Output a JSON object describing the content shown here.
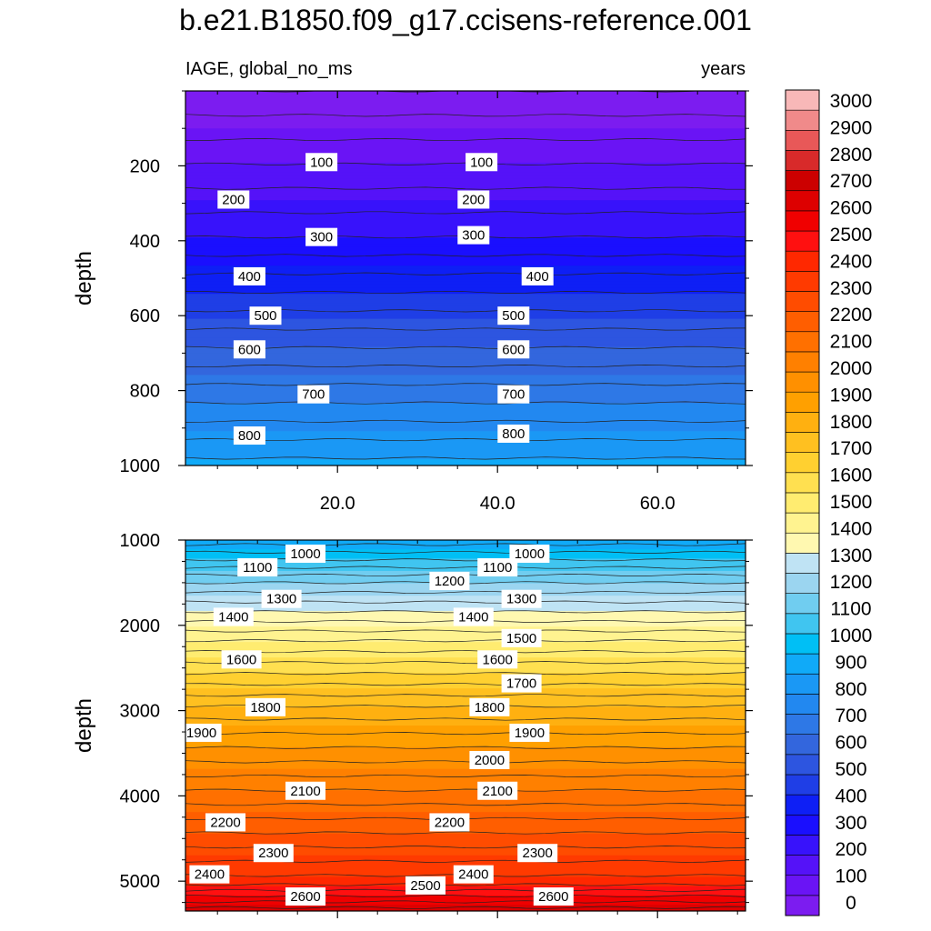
{
  "chart_data": {
    "type": "contour",
    "title": "b.e21.B1850.f09_g17.ccisens-reference.001",
    "left_string": "IAGE, global_no_ms",
    "right_string": "years",
    "colorbar": {
      "levels": [
        0,
        100,
        200,
        300,
        400,
        500,
        600,
        700,
        800,
        900,
        1000,
        1100,
        1200,
        1300,
        1400,
        1500,
        1600,
        1700,
        1800,
        1900,
        2000,
        2100,
        2200,
        2300,
        2400,
        2500,
        2600,
        2700,
        2800,
        2900,
        3000
      ],
      "tick_labels": [
        "0",
        "100",
        "200",
        "300",
        "400",
        "500",
        "600",
        "700",
        "800",
        "900",
        "1000",
        "1100",
        "1200",
        "1300",
        "1400",
        "1500",
        "1600",
        "1700",
        "1800",
        "1900",
        "2000",
        "2100",
        "2200",
        "2300",
        "2400",
        "2500",
        "2600",
        "2700",
        "2800",
        "2900",
        "3000"
      ],
      "colors": [
        "#7c1cf0",
        "#6a14f5",
        "#5512f8",
        "#3812fb",
        "#1a0ffe",
        "#0e1ff5",
        "#1f3ee6",
        "#2d55e0",
        "#3366dd",
        "#2e78e6",
        "#2288f0",
        "#1a98f5",
        "#10aaf8",
        "#00bff5",
        "#40c5f0",
        "#70cdf0",
        "#9bd5f0",
        "#bfe3f4",
        "#fff8b0",
        "#fff390",
        "#ffec70",
        "#ffe050",
        "#ffd030",
        "#ffc020",
        "#ffb010",
        "#ffa000",
        "#ff9000",
        "#ff8000",
        "#ff7000",
        "#ff5e00",
        "#ff4c00",
        "#ff3a00",
        "#ff2800",
        "#ff1010",
        "#f00000",
        "#dd0000",
        "#cc0000",
        "#d82a2a",
        "#e85858",
        "#f08a8a",
        "#f8b8b8"
      ]
    },
    "panels": [
      {
        "name": "upper",
        "ylabel": "depth",
        "ylim": [
          1000,
          0
        ],
        "yticks": [
          200,
          400,
          600,
          800,
          1000
        ],
        "ytick_labels": [
          "200",
          "400",
          "600",
          "800",
          "1000"
        ],
        "contour_labels": [
          {
            "text": "100",
            "x": 18,
            "y": 190
          },
          {
            "text": "100",
            "x": 38,
            "y": 190
          },
          {
            "text": "200",
            "x": 7,
            "y": 290
          },
          {
            "text": "200",
            "x": 37,
            "y": 290
          },
          {
            "text": "300",
            "x": 18,
            "y": 390
          },
          {
            "text": "300",
            "x": 37,
            "y": 385
          },
          {
            "text": "400",
            "x": 9,
            "y": 495
          },
          {
            "text": "400",
            "x": 45,
            "y": 495
          },
          {
            "text": "500",
            "x": 11,
            "y": 600
          },
          {
            "text": "500",
            "x": 42,
            "y": 600
          },
          {
            "text": "600",
            "x": 9,
            "y": 690
          },
          {
            "text": "600",
            "x": 42,
            "y": 690
          },
          {
            "text": "700",
            "x": 17,
            "y": 810
          },
          {
            "text": "700",
            "x": 42,
            "y": 810
          },
          {
            "text": "800",
            "x": 9,
            "y": 920
          },
          {
            "text": "800",
            "x": 42,
            "y": 915
          }
        ]
      },
      {
        "name": "lower",
        "ylabel": "depth",
        "ylim": [
          5350,
          1000
        ],
        "yticks": [
          1000,
          2000,
          3000,
          4000,
          5000
        ],
        "ytick_labels": [
          "1000",
          "2000",
          "3000",
          "4000",
          "5000"
        ],
        "contour_labels": [
          {
            "text": "1000",
            "x": 16,
            "y": 1160
          },
          {
            "text": "1000",
            "x": 44,
            "y": 1160
          },
          {
            "text": "1100",
            "x": 10,
            "y": 1320
          },
          {
            "text": "1100",
            "x": 40,
            "y": 1320
          },
          {
            "text": "1200",
            "x": 34,
            "y": 1480
          },
          {
            "text": "1300",
            "x": 13,
            "y": 1690
          },
          {
            "text": "1300",
            "x": 43,
            "y": 1690
          },
          {
            "text": "1400",
            "x": 7,
            "y": 1900
          },
          {
            "text": "1400",
            "x": 37,
            "y": 1900
          },
          {
            "text": "1500",
            "x": 43,
            "y": 2150
          },
          {
            "text": "1600",
            "x": 8,
            "y": 2400
          },
          {
            "text": "1600",
            "x": 40,
            "y": 2400
          },
          {
            "text": "1700",
            "x": 43,
            "y": 2680
          },
          {
            "text": "1800",
            "x": 11,
            "y": 2960
          },
          {
            "text": "1800",
            "x": 39,
            "y": 2960
          },
          {
            "text": "1900",
            "x": 3,
            "y": 3260
          },
          {
            "text": "1900",
            "x": 44,
            "y": 3260
          },
          {
            "text": "2000",
            "x": 39,
            "y": 3580
          },
          {
            "text": "2100",
            "x": 16,
            "y": 3940
          },
          {
            "text": "2100",
            "x": 40,
            "y": 3940
          },
          {
            "text": "2200",
            "x": 6,
            "y": 4310
          },
          {
            "text": "2200",
            "x": 34,
            "y": 4310
          },
          {
            "text": "2300",
            "x": 12,
            "y": 4670
          },
          {
            "text": "2300",
            "x": 45,
            "y": 4670
          },
          {
            "text": "2400",
            "x": 4,
            "y": 4920
          },
          {
            "text": "2400",
            "x": 37,
            "y": 4920
          },
          {
            "text": "2500",
            "x": 31,
            "y": 5050
          },
          {
            "text": "2600",
            "x": 16,
            "y": 5180
          },
          {
            "text": "2600",
            "x": 47,
            "y": 5180
          }
        ]
      }
    ],
    "x": {
      "range": [
        1,
        71
      ],
      "ticks": [
        20,
        40,
        60
      ],
      "tick_labels": [
        "20.0",
        "40.0",
        "60.0"
      ],
      "minor_ticks": [
        5,
        10,
        15,
        25,
        30,
        35,
        45,
        50,
        55,
        65,
        70
      ]
    }
  }
}
